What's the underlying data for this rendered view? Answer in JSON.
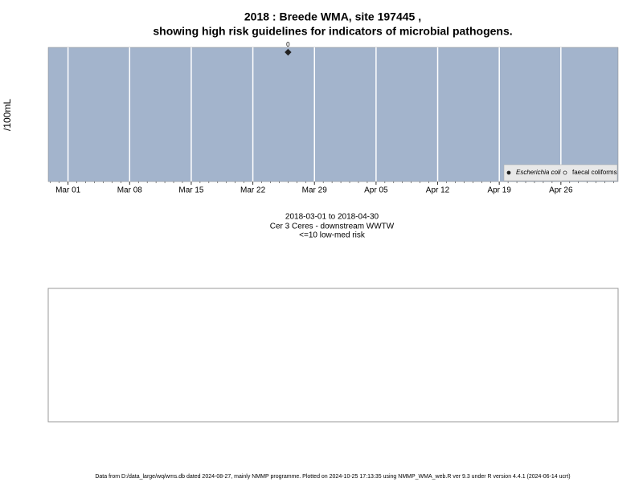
{
  "chart_data": {
    "type": "scatter",
    "title": [
      "2018 : Breede WMA, site 197445 ,",
      "showing high risk guidelines for indicators of microbial pathogens."
    ],
    "y_label": "/100mL",
    "x": [
      "2018-03-26"
    ],
    "series": [
      {
        "name": "Escherichia coli",
        "color": "#222222",
        "filled": true,
        "values": [
          0
        ]
      },
      {
        "name": "faecal coliforms",
        "color": "#222222",
        "filled": false,
        "values": [
          null
        ]
      }
    ],
    "xlim": [
      "2018-02-26T18:00",
      "2018-05-02T12:00"
    ],
    "xticks": [
      {
        "value": "2018-03-01",
        "label": "Mar 01"
      },
      {
        "value": "2018-03-08",
        "label": "Mar 08"
      },
      {
        "value": "2018-03-15",
        "label": "Mar 15"
      },
      {
        "value": "2018-03-22",
        "label": "Mar 22"
      },
      {
        "value": "2018-03-29",
        "label": "Mar 29"
      },
      {
        "value": "2018-04-05",
        "label": "Apr 05"
      },
      {
        "value": "2018-04-12",
        "label": "Apr 12"
      },
      {
        "value": "2018-04-19",
        "label": "Apr 19"
      },
      {
        "value": "2018-04-26",
        "label": "Apr 26"
      }
    ],
    "grid": true,
    "panel_color": "#a3b4cc",
    "legend": "bottom-right",
    "captions": [
      "2018-03-01 to 2018-04-30",
      "Cer 3 Ceres - downstream WWTW",
      "<=10 low-med risk"
    ],
    "footer": "Data from D:/data_large/wq/wms.db dated 2024-08-27, mainly NMMP programme. Plotted on 2024-10-25 17:13:35 using NMMP_WMA_web.R ver 9.3 under R version 4.4.1 (2024-06-14 ucrt)"
  }
}
